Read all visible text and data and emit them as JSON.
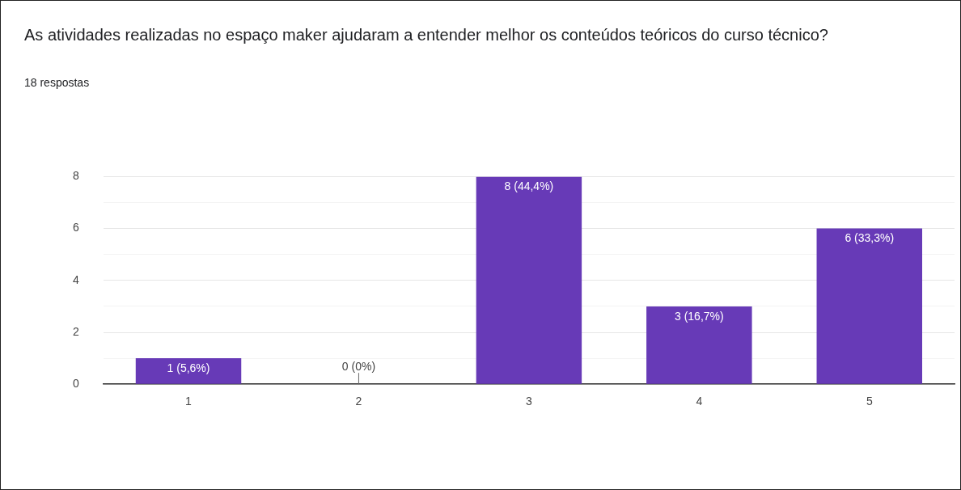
{
  "chart_data": {
    "type": "bar",
    "title": "As atividades realizadas no espaço maker ajudaram a entender melhor os conteúdos teóricos do curso técnico?",
    "subtitle": "18 respostas",
    "categories": [
      "1",
      "2",
      "3",
      "4",
      "5"
    ],
    "values": [
      1,
      0,
      8,
      3,
      6
    ],
    "value_labels": [
      "1 (5,6%)",
      "0 (0%)",
      "8 (44,4%)",
      "3 (16,7%)",
      "6 (33,3%)"
    ],
    "color": "#673ab7",
    "ylim": [
      0,
      8
    ],
    "yticks": [
      0,
      {
        "value": 1,
        "label": null
      },
      2,
      {
        "value": 3,
        "label": null
      },
      4,
      {
        "value": 5,
        "label": null
      },
      6,
      {
        "value": 7,
        "label": null
      },
      8
    ],
    "grid": "y",
    "legend": false
  }
}
